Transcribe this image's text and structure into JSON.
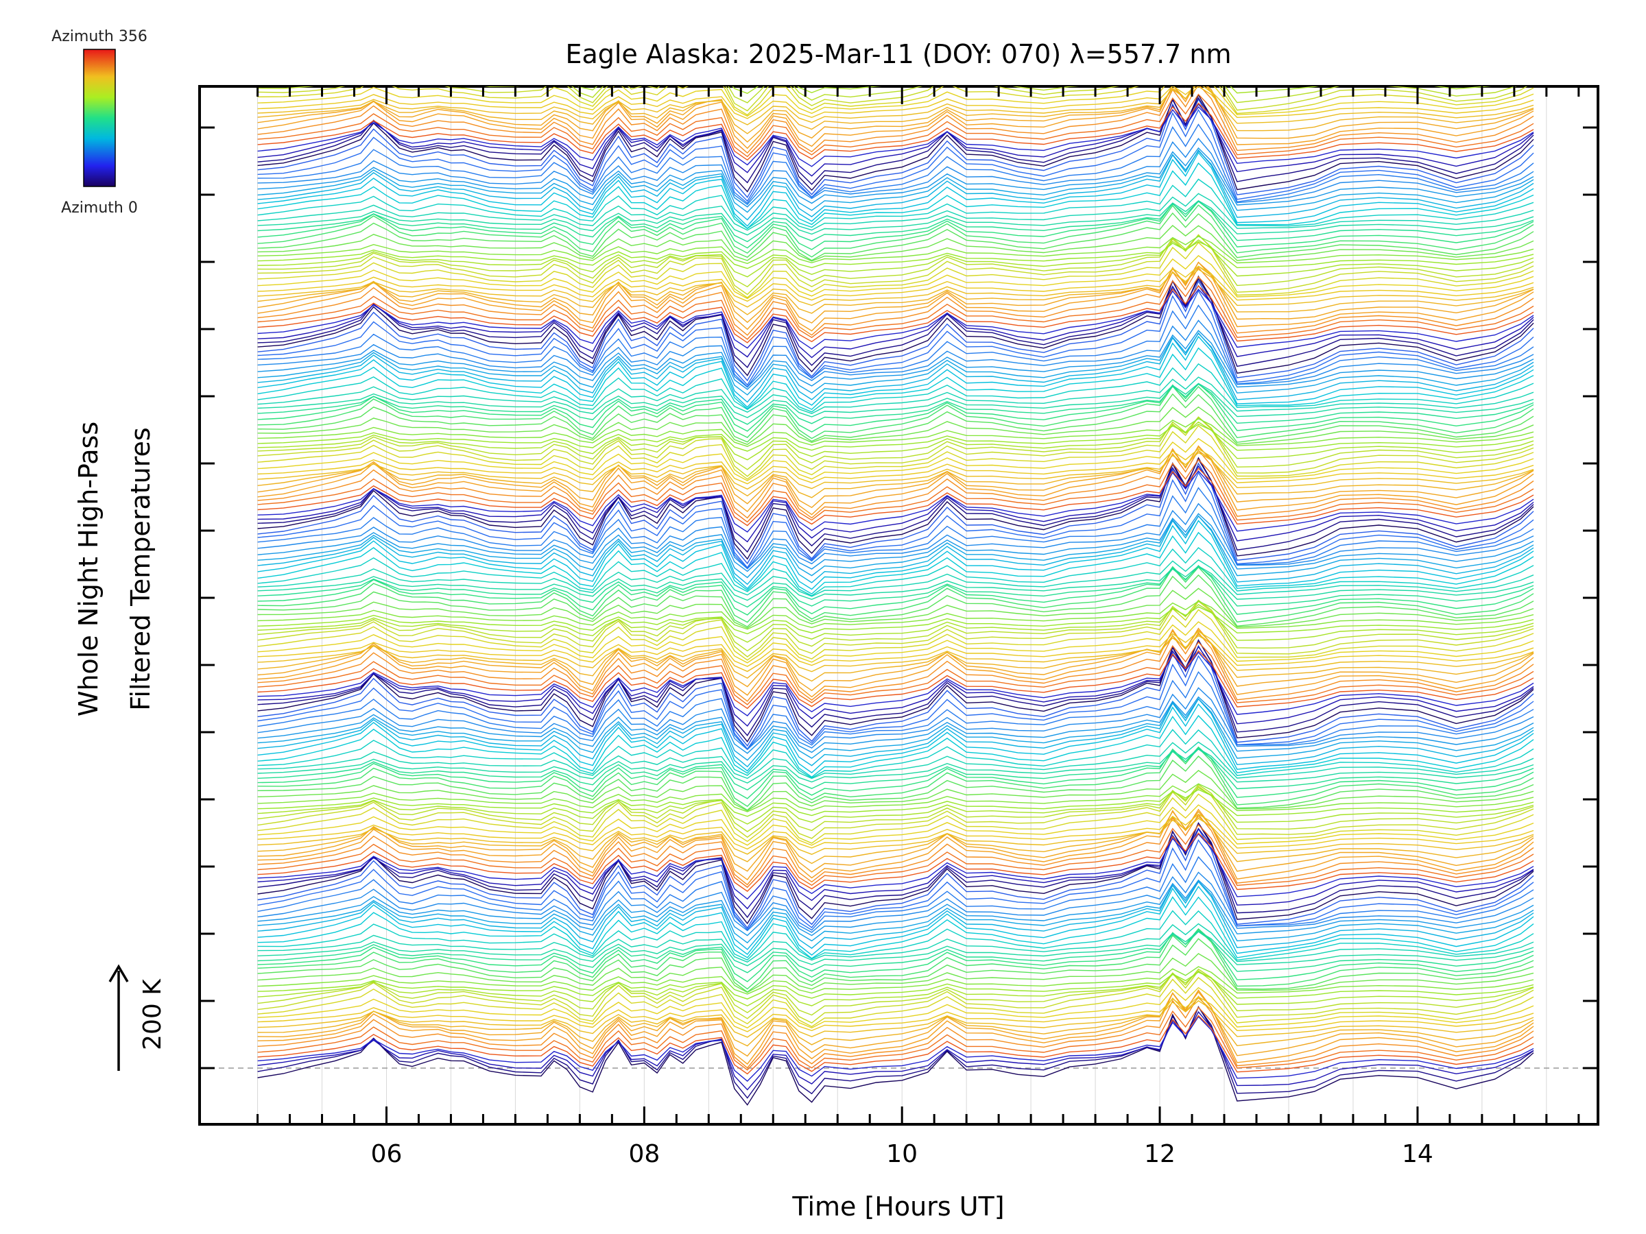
{
  "chart_data": {
    "type": "line",
    "title": "Eagle Alaska: 2025-Mar-11 (DOY: 070) λ=557.7 nm",
    "xlabel": "Time [Hours UT]",
    "ylabel_line1": "Whole Night High-Pass",
    "ylabel_line2": "Filtered Temperatures",
    "xlim": [
      4.55,
      15.4
    ],
    "x_ticks": [
      6,
      8,
      10,
      12,
      14
    ],
    "x_tick_labels": [
      "06",
      "08",
      "10",
      "12",
      "14"
    ],
    "scale_bar_label": "200 K",
    "colorbar": {
      "top_label": "Azimuth  356",
      "bottom_label": "Azimuth  0",
      "colormap": "rainbow"
    },
    "grid": true,
    "stacks": 6,
    "traces_per_stack": 36,
    "x": [
      5.0,
      5.2,
      5.4,
      5.6,
      5.8,
      5.9,
      6.0,
      6.1,
      6.2,
      6.3,
      6.4,
      6.5,
      6.6,
      6.8,
      7.0,
      7.2,
      7.3,
      7.4,
      7.5,
      7.6,
      7.7,
      7.8,
      7.9,
      8.0,
      8.1,
      8.2,
      8.3,
      8.4,
      8.5,
      8.6,
      8.7,
      8.8,
      8.9,
      9.0,
      9.1,
      9.2,
      9.3,
      9.4,
      9.6,
      9.8,
      10.0,
      10.2,
      10.35,
      10.5,
      10.7,
      10.9,
      11.1,
      11.3,
      11.5,
      11.7,
      11.9,
      12.0,
      12.1,
      12.2,
      12.3,
      12.4,
      12.5,
      12.6,
      12.8,
      13.0,
      13.2,
      13.4,
      13.7,
      14.0,
      14.3,
      14.6,
      14.8,
      14.9
    ],
    "reference_curve": [
      0,
      5,
      15,
      25,
      40,
      65,
      45,
      25,
      20,
      25,
      30,
      25,
      25,
      10,
      5,
      5,
      30,
      15,
      -15,
      -25,
      25,
      55,
      20,
      25,
      10,
      40,
      25,
      45,
      50,
      55,
      -20,
      -45,
      -10,
      35,
      30,
      -20,
      -40,
      -15,
      -20,
      -10,
      -5,
      10,
      45,
      15,
      15,
      5,
      0,
      15,
      20,
      30,
      50,
      45,
      105,
      65,
      115,
      80,
      20,
      -40,
      -35,
      -30,
      -20,
      0,
      5,
      0,
      -20,
      -5,
      20,
      40
    ]
  }
}
